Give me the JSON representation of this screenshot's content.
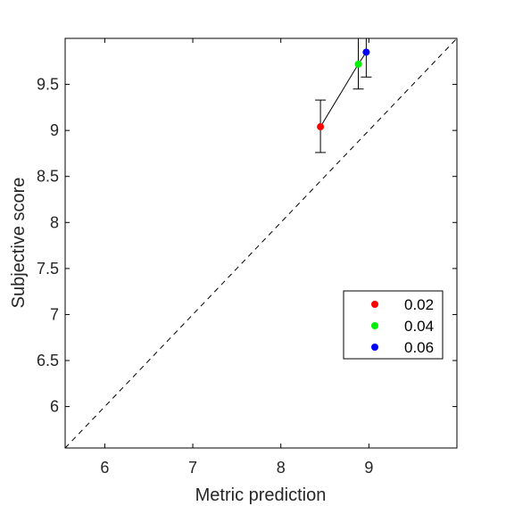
{
  "chart_data": {
    "type": "scatter",
    "title": "",
    "xlabel": "Metric prediction",
    "ylabel": "Subjective score",
    "xlim": [
      5.55,
      10.0
    ],
    "ylim": [
      5.55,
      10.0
    ],
    "xticks": [
      6,
      7,
      8,
      9
    ],
    "xtick_labels": [
      "6",
      "7",
      "8",
      "9"
    ],
    "yticks": [
      6,
      6.5,
      7,
      7.5,
      8,
      8.5,
      9,
      9.5
    ],
    "ytick_labels": [
      "6",
      "6.5",
      "7",
      "7.5",
      "8",
      "8.5",
      "9",
      "9.5"
    ],
    "grid": false,
    "legend_position": "bottom-right",
    "reference_line": {
      "style": "dashed",
      "color": "#000000",
      "description": "y = x"
    },
    "series": [
      {
        "name": "0.02",
        "color": "#ff0000",
        "x": 8.45,
        "y": 9.04,
        "err_low": 8.76,
        "err_high": 9.33
      },
      {
        "name": "0.04",
        "color": "#00ee00",
        "x": 8.88,
        "y": 9.72,
        "err_low": 9.45,
        "err_high": 10.0
      },
      {
        "name": "0.06",
        "color": "#0000ff",
        "x": 8.97,
        "y": 9.85,
        "err_low": 9.58,
        "err_high": 10.0
      }
    ]
  }
}
